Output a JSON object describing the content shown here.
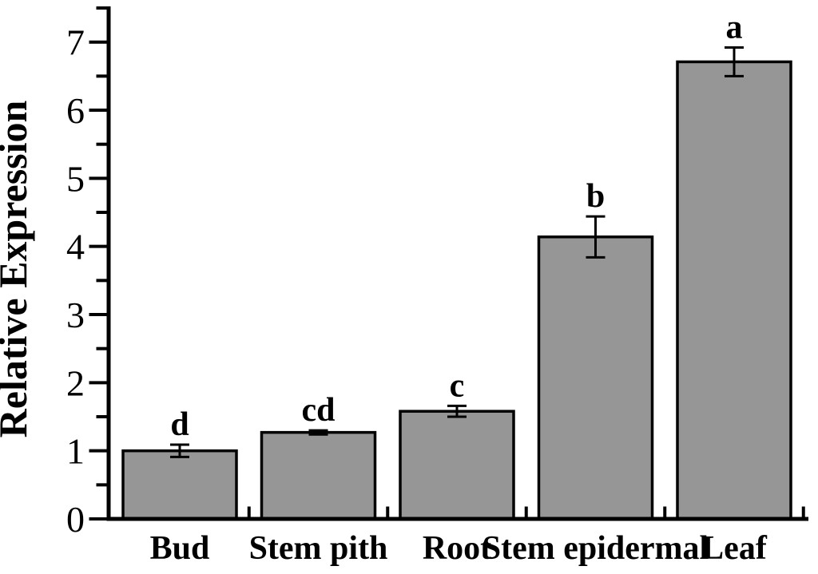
{
  "chart_data": {
    "type": "bar",
    "title": "",
    "xlabel": "",
    "ylabel": "Relative Expression",
    "categories": [
      "Bud",
      "Stem pith",
      "Root",
      "Stem epidermal",
      "Leaf"
    ],
    "values": [
      1.0,
      1.27,
      1.58,
      4.14,
      6.71
    ],
    "errors": [
      0.09,
      0.03,
      0.08,
      0.3,
      0.21
    ],
    "sig_letters": [
      "d",
      "cd",
      "c",
      "b",
      "a"
    ],
    "ylim": [
      0,
      7.5
    ],
    "yticks": [
      0,
      1,
      2,
      3,
      4,
      5,
      6,
      7
    ],
    "y_minor_tick_interval": 0.5,
    "tick_direction": "out",
    "grid": false,
    "legend": false,
    "bar_color": "#969696",
    "bar_border_color": "#000000",
    "axis_color": "#000000",
    "text_color": "#000000",
    "background_color": "#ffffff"
  }
}
